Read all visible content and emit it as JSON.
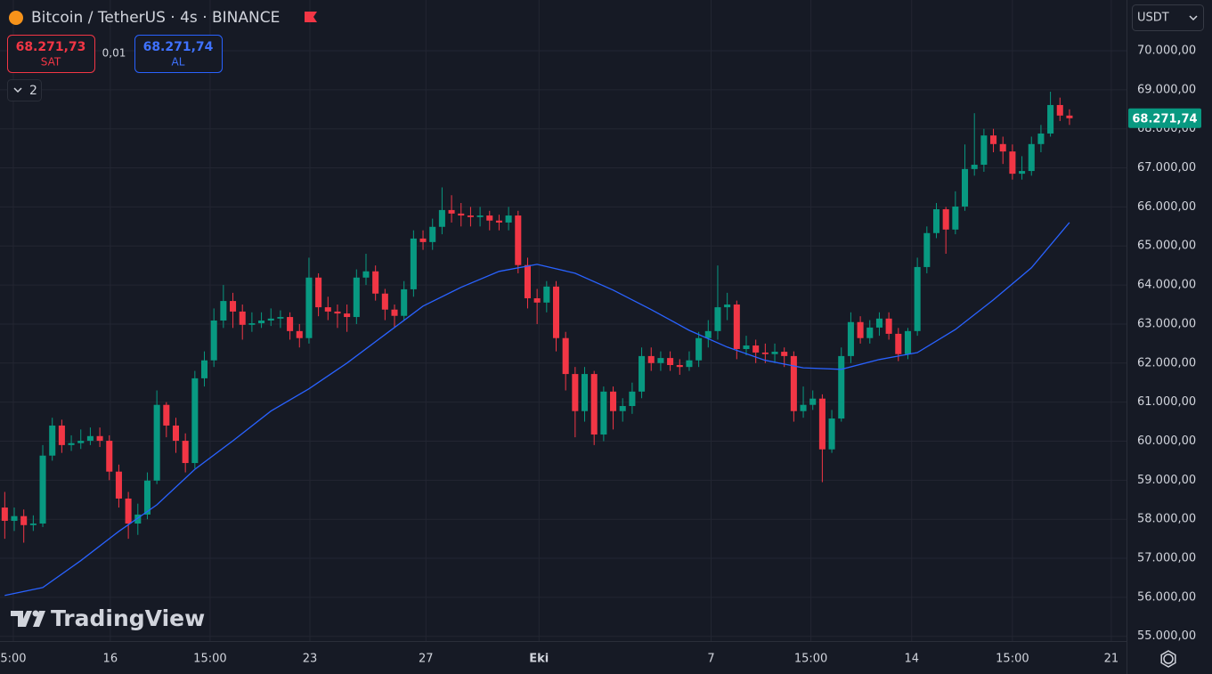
{
  "toolbar": {
    "sell_price": "68.271,73",
    "sell_label": "SAT",
    "spread": "0,01",
    "buy_price": "68.271,74",
    "buy_label": "AL",
    "indicators_count": "2",
    "currency": "USDT"
  },
  "chart_data": {
    "type": "candlestick",
    "title": "Bitcoin / TetherUS · 4s · BINANCE",
    "watermark": "TradingView",
    "grid": true,
    "xlim": [
      -0.5,
      118
    ],
    "ylim": [
      54880,
      71300
    ],
    "xticks": [
      {
        "value": 0.9,
        "label": "5:00"
      },
      {
        "value": 11.1,
        "label": "16"
      },
      {
        "value": 21.6,
        "label": "15:00"
      },
      {
        "value": 32.1,
        "label": "23"
      },
      {
        "value": 44.3,
        "label": "27"
      },
      {
        "value": 56.2,
        "label": "Eki"
      },
      {
        "value": 74.3,
        "label": "7"
      },
      {
        "value": 84.8,
        "label": "15:00"
      },
      {
        "value": 95.4,
        "label": "14"
      },
      {
        "value": 106.0,
        "label": "15:00"
      },
      {
        "value": 116.4,
        "label": "21"
      }
    ],
    "yticks": [
      {
        "value": 55000,
        "label": "55.000,00"
      },
      {
        "value": 56000,
        "label": "56.000,00"
      },
      {
        "value": 57000,
        "label": "57.000,00"
      },
      {
        "value": 58000,
        "label": "58.000,00"
      },
      {
        "value": 59000,
        "label": "59.000,00"
      },
      {
        "value": 60000,
        "label": "60.000,00"
      },
      {
        "value": 61000,
        "label": "61.000,00"
      },
      {
        "value": 62000,
        "label": "62.000,00"
      },
      {
        "value": 63000,
        "label": "63.000,00"
      },
      {
        "value": 64000,
        "label": "64.000,00"
      },
      {
        "value": 65000,
        "label": "65.000,00"
      },
      {
        "value": 66000,
        "label": "66.000,00"
      },
      {
        "value": 67000,
        "label": "67.000,00"
      },
      {
        "value": 68000,
        "label": "68.000,00"
      },
      {
        "value": 69000,
        "label": "69.000,00"
      },
      {
        "value": 70000,
        "label": "70.000,00"
      }
    ],
    "price_tag": {
      "value": 68271.74,
      "label": "68.271,74",
      "color": "#089981"
    },
    "x": [
      0,
      1,
      2,
      3,
      4,
      5,
      6,
      7,
      8,
      9,
      10,
      11,
      12,
      13,
      14,
      15,
      16,
      17,
      18,
      19,
      20,
      21,
      22,
      23,
      24,
      25,
      26,
      27,
      28,
      29,
      30,
      31,
      32,
      33,
      34,
      35,
      36,
      37,
      38,
      39,
      40,
      41,
      42,
      43,
      44,
      45,
      46,
      47,
      48,
      49,
      50,
      51,
      52,
      53,
      54,
      55,
      56,
      57,
      58,
      59,
      60,
      61,
      62,
      63,
      64,
      65,
      66,
      67,
      68,
      69,
      70,
      71,
      72,
      73,
      74,
      75,
      76,
      77,
      78,
      79,
      80,
      81,
      82,
      83,
      84,
      85,
      86,
      87,
      88,
      89,
      90,
      91,
      92,
      93,
      94,
      95,
      96,
      97,
      98,
      99,
      100,
      101,
      102,
      103,
      104,
      105,
      106,
      107,
      108,
      109,
      110,
      111,
      112
    ],
    "candles": {
      "up_color": "#089981",
      "down_color": "#f23645",
      "open": [
        58300,
        57960,
        58080,
        57850,
        57890,
        59630,
        60400,
        59900,
        59950,
        60010,
        60130,
        60010,
        59220,
        58530,
        57890,
        58120,
        58990,
        60930,
        60400,
        60010,
        59440,
        61610,
        62070,
        63090,
        63590,
        63320,
        62980,
        63020,
        63090,
        63140,
        63180,
        62820,
        62640,
        64190,
        63430,
        63320,
        63270,
        63180,
        64190,
        64350,
        63780,
        63370,
        63210,
        63890,
        65190,
        65100,
        65490,
        65920,
        65830,
        65780,
        65740,
        65780,
        65650,
        65600,
        65780,
        64510,
        63660,
        63550,
        63960,
        62640,
        61720,
        60770,
        61720,
        60170,
        61270,
        60770,
        60900,
        61270,
        62180,
        62000,
        62130,
        61950,
        61900,
        62070,
        62640,
        62820,
        63430,
        63500,
        62360,
        62450,
        62270,
        62230,
        62290,
        62180,
        60770,
        60930,
        61090,
        59790,
        60580,
        62180,
        63050,
        62640,
        62910,
        63140,
        62750,
        62230,
        62820,
        64460,
        65330,
        65940,
        65420,
        66010,
        66970,
        67080,
        67830,
        67610,
        67420,
        66850,
        66920,
        67610,
        67880,
        68610,
        68340
      ],
      "high": [
        58700,
        58300,
        58250,
        58100,
        59900,
        60600,
        60550,
        60150,
        60300,
        60350,
        60350,
        60150,
        59400,
        58700,
        58400,
        59200,
        61300,
        61000,
        60600,
        60200,
        61800,
        62300,
        63400,
        64000,
        63800,
        63500,
        63300,
        63300,
        63400,
        63350,
        63300,
        63000,
        64700,
        64300,
        63700,
        63500,
        63500,
        64400,
        64800,
        64500,
        63900,
        63500,
        64100,
        65400,
        65400,
        65700,
        66500,
        66300,
        66100,
        66000,
        66000,
        65900,
        65800,
        66000,
        65900,
        64700,
        63900,
        64100,
        64100,
        62800,
        61900,
        61900,
        61800,
        61400,
        61400,
        61100,
        61500,
        62400,
        62400,
        62300,
        62300,
        62100,
        62300,
        62800,
        63100,
        64500,
        63800,
        63600,
        62700,
        62600,
        62500,
        62500,
        62400,
        62300,
        61400,
        61300,
        61200,
        60800,
        62400,
        63300,
        63200,
        63100,
        63300,
        63300,
        62900,
        62900,
        64700,
        65500,
        66100,
        66000,
        66400,
        67600,
        68400,
        68000,
        68000,
        67800,
        67600,
        67300,
        67800,
        68100,
        68950,
        68800,
        68500
      ],
      "low": [
        57500,
        57700,
        57400,
        57700,
        57800,
        59500,
        59700,
        59750,
        59800,
        59900,
        59850,
        59000,
        58300,
        57500,
        57600,
        58000,
        58900,
        60100,
        59700,
        59200,
        59300,
        61400,
        61900,
        62900,
        62900,
        62600,
        62800,
        62900,
        62950,
        62900,
        62600,
        62400,
        62500,
        63200,
        63100,
        62900,
        62800,
        63000,
        64000,
        63600,
        63100,
        62900,
        63100,
        63700,
        64900,
        64900,
        65300,
        65600,
        65500,
        65500,
        65500,
        65400,
        65400,
        65400,
        64300,
        63400,
        63000,
        63300,
        62300,
        61300,
        60100,
        60500,
        59900,
        60000,
        60300,
        60500,
        60700,
        61100,
        61800,
        61800,
        61800,
        61700,
        61800,
        61900,
        62400,
        62600,
        63100,
        62100,
        62200,
        62000,
        62000,
        62000,
        61900,
        60500,
        60600,
        60800,
        58950,
        59700,
        60500,
        62000,
        62500,
        62500,
        62700,
        62600,
        62050,
        62100,
        62700,
        64300,
        65200,
        64800,
        65300,
        65900,
        66800,
        66900,
        67400,
        67100,
        66700,
        66700,
        66800,
        67400,
        67800,
        68200,
        68100
      ],
      "close": [
        57960,
        58080,
        57850,
        57890,
        59630,
        60400,
        59900,
        59950,
        60010,
        60130,
        60010,
        59220,
        58530,
        57890,
        58120,
        58990,
        60930,
        60400,
        60010,
        59440,
        61610,
        62070,
        63090,
        63590,
        63320,
        62980,
        63020,
        63090,
        63140,
        63180,
        62820,
        62640,
        64190,
        63430,
        63320,
        63270,
        63180,
        64190,
        64350,
        63780,
        63370,
        63210,
        63890,
        65190,
        65100,
        65490,
        65920,
        65830,
        65780,
        65740,
        65780,
        65650,
        65600,
        65780,
        64510,
        63660,
        63550,
        63960,
        62640,
        61720,
        60770,
        61720,
        60170,
        61270,
        60770,
        60900,
        61270,
        62180,
        62000,
        62130,
        61950,
        61900,
        62070,
        62640,
        62820,
        63430,
        63500,
        62360,
        62450,
        62270,
        62230,
        62290,
        62180,
        60770,
        60930,
        61090,
        59790,
        60580,
        62180,
        63050,
        62640,
        62910,
        63140,
        62750,
        62230,
        62820,
        64460,
        65330,
        65940,
        65420,
        66010,
        66970,
        67080,
        67830,
        67610,
        67420,
        66850,
        66920,
        67610,
        67880,
        68610,
        68340,
        68271.74
      ]
    },
    "moving_average": {
      "color": "#2962ff",
      "x": [
        0,
        4,
        8,
        12,
        16,
        20,
        24,
        28,
        32,
        36,
        40,
        44,
        48,
        52,
        56,
        60,
        64,
        68,
        72,
        76,
        80,
        84,
        88,
        92,
        96,
        100,
        104,
        108,
        112
      ],
      "values": [
        56050,
        56250,
        56940,
        57690,
        58370,
        59280,
        60010,
        60770,
        61340,
        62000,
        62730,
        63460,
        63940,
        64350,
        64530,
        64300,
        63870,
        63370,
        62840,
        62410,
        62070,
        61880,
        61840,
        62090,
        62270,
        62860,
        63620,
        64440,
        65600
      ]
    }
  }
}
